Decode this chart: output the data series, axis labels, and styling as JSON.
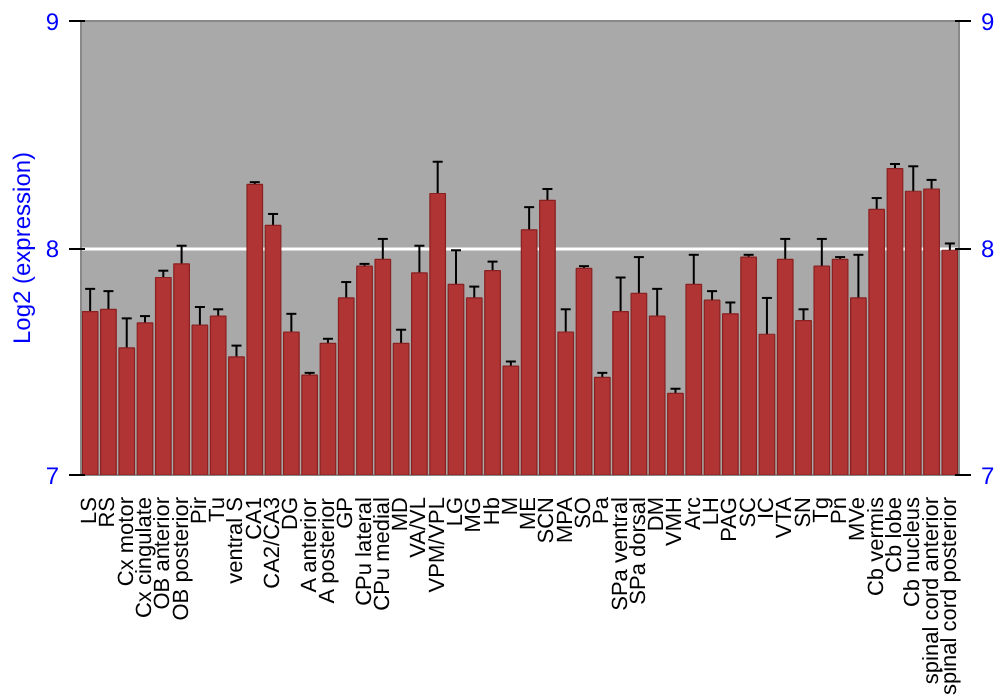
{
  "chart_data": {
    "type": "bar",
    "ylabel": "Log2 (expression)",
    "categories": [
      "LS",
      "RS",
      "Cx motor",
      "Cx cingulate",
      "OB anterior",
      "OB posterior",
      "Pir",
      "Tu",
      "ventral S",
      "CA1",
      "CA2/CA3",
      "DG",
      "A anterior",
      "A posterior",
      "GP",
      "CPu lateral",
      "CPu medial",
      "MD",
      "VA/VL",
      "VPM/VPL",
      "LG",
      "MG",
      "Hb",
      "M",
      "ME",
      "SCN",
      "MPA",
      "SO",
      "Pa",
      "SPa ventral",
      "SPa dorsal",
      "DM",
      "VMH",
      "Arc",
      "LH",
      "PAG",
      "SC",
      "IC",
      "VTA",
      "SN",
      "Tg",
      "Pn",
      "MVe",
      "Cb vermis",
      "Cb lobe",
      "Cb nucleus",
      "spinal cord anterior",
      "spinal cord posterior"
    ],
    "values": [
      7.72,
      7.73,
      7.56,
      7.67,
      7.87,
      7.93,
      7.66,
      7.7,
      7.52,
      8.28,
      8.1,
      7.63,
      7.44,
      7.58,
      7.78,
      7.92,
      7.95,
      7.58,
      7.89,
      8.24,
      7.84,
      7.78,
      7.9,
      7.48,
      8.08,
      8.21,
      7.63,
      7.91,
      7.43,
      7.72,
      7.8,
      7.7,
      7.36,
      7.84,
      7.77,
      7.71,
      7.96,
      7.62,
      7.95,
      7.68,
      7.92,
      7.95,
      7.78,
      8.17,
      8.35,
      8.25,
      8.26,
      7.99
    ],
    "errors": [
      0.1,
      0.08,
      0.13,
      0.03,
      0.03,
      0.08,
      0.08,
      0.03,
      0.05,
      0.01,
      0.05,
      0.08,
      0.01,
      0.02,
      0.07,
      0.01,
      0.09,
      0.06,
      0.12,
      0.14,
      0.15,
      0.05,
      0.04,
      0.02,
      0.1,
      0.05,
      0.1,
      0.01,
      0.02,
      0.15,
      0.16,
      0.12,
      0.02,
      0.13,
      0.04,
      0.05,
      0.01,
      0.16,
      0.09,
      0.05,
      0.12,
      0.01,
      0.19,
      0.05,
      0.02,
      0.11,
      0.04,
      0.03
    ],
    "color": "#b03434",
    "ylim": [
      7,
      9
    ],
    "yticks": [
      7,
      8,
      9
    ],
    "y2lim": [
      7,
      9
    ],
    "y2ticks": [
      7,
      8,
      9
    ],
    "grid": "y"
  }
}
